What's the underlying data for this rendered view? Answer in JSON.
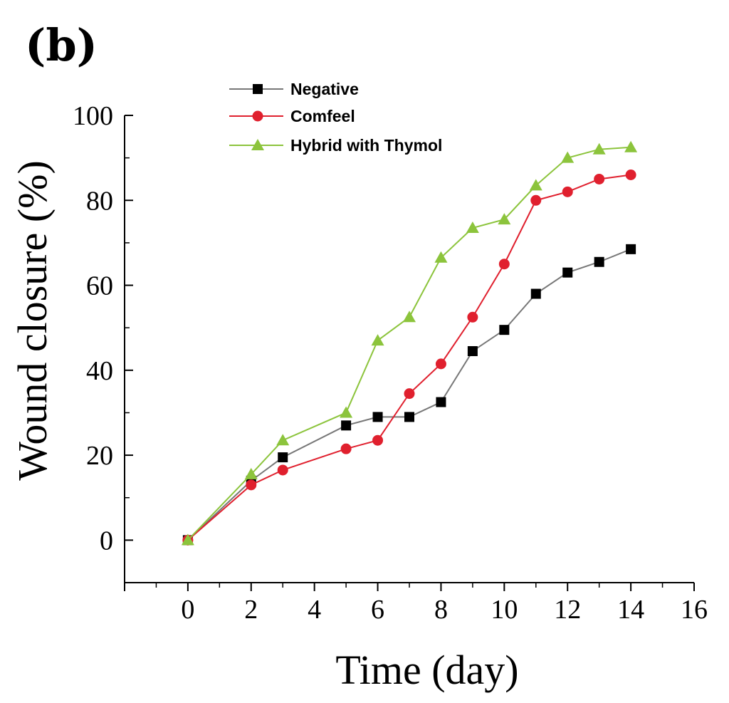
{
  "chart_data": {
    "type": "line",
    "panel_label": "(b)",
    "title": "",
    "xlabel": "Time (day)",
    "ylabel": "Wound closure (%)",
    "xlim": [
      -2,
      16
    ],
    "ylim": [
      -10,
      100
    ],
    "xticks": [
      0,
      2,
      4,
      6,
      8,
      10,
      12,
      14,
      16
    ],
    "yticks": [
      0,
      20,
      40,
      60,
      80,
      100
    ],
    "legend_position": "top-left",
    "series": [
      {
        "name": "Negative",
        "color": "#000000",
        "line_color": "#777777",
        "marker": "square",
        "x": [
          0,
          2,
          3,
          5,
          6,
          7,
          8,
          9,
          10,
          11,
          12,
          13,
          14
        ],
        "values": [
          0,
          14,
          19.5,
          27,
          29,
          29,
          32.5,
          44.5,
          49.5,
          58,
          63,
          65.5,
          68.5
        ]
      },
      {
        "name": "Comfeel",
        "color": "#e0202e",
        "line_color": "#e0202e",
        "marker": "circle",
        "x": [
          0,
          2,
          3,
          5,
          6,
          7,
          8,
          9,
          10,
          11,
          12,
          13,
          14
        ],
        "values": [
          0,
          13,
          16.5,
          21.5,
          23.5,
          34.5,
          41.5,
          52.5,
          65,
          80,
          82,
          85,
          86
        ]
      },
      {
        "name": "Hybrid with Thymol",
        "color": "#8cc43c",
        "line_color": "#8cc43c",
        "marker": "triangle",
        "x": [
          0,
          2,
          3,
          5,
          6,
          7,
          8,
          9,
          10,
          11,
          12,
          13,
          14
        ],
        "values": [
          0,
          15.5,
          23.5,
          30,
          47,
          52.5,
          66.5,
          73.5,
          75.5,
          83.5,
          90,
          92,
          92.5
        ]
      }
    ]
  }
}
